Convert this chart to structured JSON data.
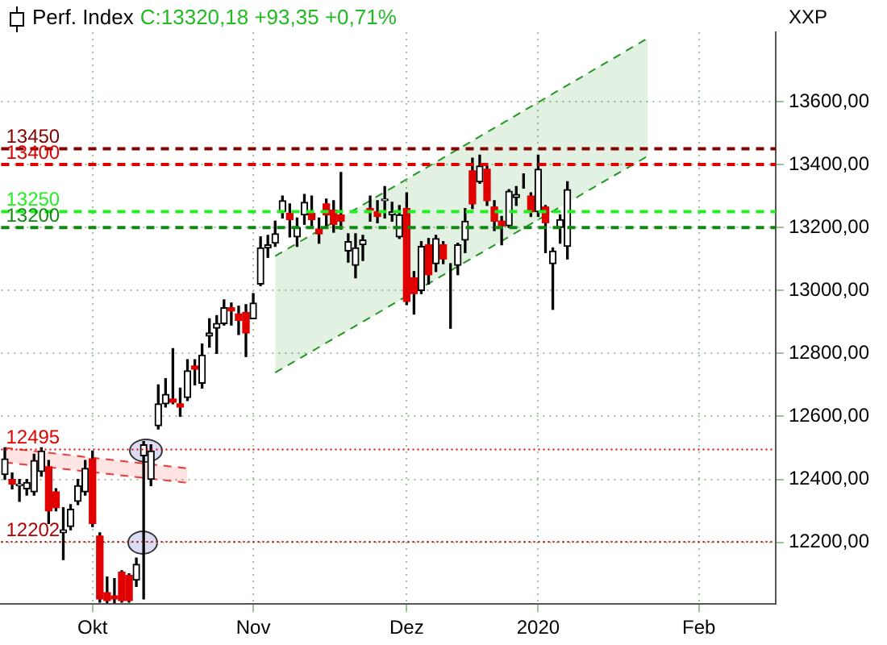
{
  "chart_data": {
    "type": "candlestick",
    "title": "Perf. Index",
    "subtitle": "C:13320,18 +93,35 +0,71%",
    "ylabel": "XXP",
    "categories": [
      null,
      null,
      null,
      null,
      null,
      null,
      null,
      null,
      null,
      null,
      null,
      null,
      "Okt",
      null,
      null,
      null,
      null,
      null,
      null,
      null,
      null,
      null,
      null,
      null,
      null,
      null,
      null,
      null,
      null,
      null,
      null,
      null,
      null,
      null,
      "Nov",
      null,
      null,
      null,
      null,
      null,
      null,
      null,
      null,
      null,
      null,
      null,
      null,
      null,
      null,
      null,
      null,
      null,
      null,
      null,
      null,
      "Dez",
      null,
      null,
      null,
      null,
      null,
      null,
      null,
      null,
      null,
      null,
      null,
      null,
      null,
      null,
      null,
      null,
      null,
      "2020",
      null,
      null,
      null,
      null,
      null,
      null,
      null,
      null,
      null,
      null,
      null,
      null,
      null,
      null,
      null,
      null,
      null,
      null,
      null,
      null,
      null,
      "Feb",
      null,
      null,
      null,
      null,
      null,
      null,
      null,
      null,
      null,
      null
    ],
    "ohlc": [
      [
        12415,
        12500,
        12400,
        12465
      ],
      [
        12400,
        12420,
        12370,
        12385
      ],
      [
        12380,
        12400,
        12330,
        12385
      ],
      [
        12370,
        12400,
        12350,
        12390
      ],
      [
        12360,
        12480,
        12350,
        12460
      ],
      [
        12425,
        12500,
        12410,
        12490
      ],
      [
        12440,
        12460,
        12260,
        12300
      ],
      [
        12360,
        12370,
        12300,
        12310
      ],
      [
        12230,
        12310,
        12145,
        12240
      ],
      [
        12250,
        12320,
        12240,
        12305
      ],
      [
        12330,
        12400,
        12320,
        12380
      ],
      [
        12360,
        12460,
        12350,
        12435
      ],
      [
        12465,
        12490,
        12250,
        12260
      ],
      [
        12220,
        12230,
        12010,
        12020
      ],
      [
        12040,
        12090,
        12008,
        12015
      ],
      [
        12030,
        12085,
        12008,
        12020
      ],
      [
        12105,
        12110,
        12010,
        12015
      ],
      [
        12095,
        12100,
        12010,
        12015
      ],
      [
        12080,
        12150,
        12060,
        12130
      ],
      [
        12475,
        12520,
        12020,
        12510
      ],
      [
        12400,
        12510,
        12380,
        12490
      ],
      [
        12570,
        12700,
        12560,
        12640
      ],
      [
        12640,
        12720,
        12630,
        12670
      ],
      [
        12655,
        12815,
        12640,
        12645
      ],
      [
        12640,
        12690,
        12600,
        12630
      ],
      [
        12660,
        12780,
        12650,
        12745
      ],
      [
        12760,
        12780,
        12700,
        12750
      ],
      [
        12705,
        12830,
        12690,
        12795
      ],
      [
        12855,
        12910,
        12820,
        12865
      ],
      [
        12880,
        12920,
        12800,
        12895
      ],
      [
        12895,
        12970,
        12890,
        12945
      ],
      [
        12945,
        12960,
        12890,
        12935
      ],
      [
        12925,
        12950,
        12860,
        12905
      ],
      [
        12930,
        12955,
        12790,
        12865
      ],
      [
        12910,
        12990,
        12910,
        12960
      ],
      [
        13020,
        13170,
        13015,
        13135
      ],
      [
        13135,
        13175,
        13105,
        13145
      ],
      [
        13150,
        13220,
        13140,
        13180
      ],
      [
        13250,
        13300,
        13230,
        13285
      ],
      [
        13245,
        13275,
        13170,
        13225
      ],
      [
        13170,
        13230,
        13140,
        13200
      ],
      [
        13240,
        13305,
        13210,
        13280
      ],
      [
        13245,
        13300,
        13205,
        13225
      ],
      [
        13195,
        13230,
        13150,
        13180
      ],
      [
        13275,
        13290,
        13200,
        13240
      ],
      [
        13255,
        13285,
        13185,
        13210
      ],
      [
        13240,
        13375,
        13195,
        13220
      ],
      [
        13125,
        13180,
        13090,
        13155
      ],
      [
        13080,
        13180,
        13040,
        13135
      ],
      [
        13145,
        13175,
        13095,
        13160
      ],
      [
        13260,
        13300,
        13220,
        13255
      ],
      [
        13250,
        13285,
        13215,
        13235
      ],
      [
        13285,
        13330,
        13230,
        13290
      ],
      [
        13240,
        13280,
        13220,
        13250
      ],
      [
        13170,
        13270,
        13165,
        13240
      ],
      [
        13260,
        13310,
        12955,
        12965
      ],
      [
        13040,
        13060,
        12925,
        12990
      ],
      [
        13000,
        13155,
        12990,
        13140
      ],
      [
        13145,
        13165,
        13020,
        13050
      ],
      [
        13085,
        13175,
        13060,
        13165
      ],
      [
        13145,
        13155,
        13085,
        13100
      ],
      [
        13070,
        13085,
        12880,
        13070
      ],
      [
        13080,
        13150,
        13050,
        13145
      ],
      [
        13160,
        13260,
        13120,
        13220
      ],
      [
        13380,
        13420,
        13260,
        13275
      ],
      [
        13345,
        13430,
        13340,
        13395
      ],
      [
        13385,
        13395,
        13270,
        13285
      ],
      [
        13265,
        13285,
        13190,
        13220
      ],
      [
        13220,
        13235,
        13145,
        13205
      ],
      [
        13205,
        13320,
        13200,
        13315
      ],
      [
        13295,
        13330,
        13270,
        13305
      ],
      [
        13335,
        13370,
        13325,
        13335
      ],
      [
        13300,
        13310,
        13235,
        13250
      ],
      [
        13250,
        13430,
        13235,
        13385
      ],
      [
        13265,
        13270,
        13120,
        13215
      ],
      [
        13085,
        13135,
        12940,
        13125
      ],
      [
        13200,
        13240,
        13150,
        13225
      ],
      [
        13140,
        13345,
        13100,
        13320
      ],
      null,
      null,
      null,
      null,
      null,
      null,
      null,
      null,
      null,
      null,
      null,
      null,
      null,
      null,
      null,
      null,
      null,
      null,
      null,
      null,
      null,
      null,
      null,
      null,
      null,
      null,
      null,
      null
    ],
    "series": [
      {
        "type": "line",
        "color": "#229922",
        "line_style": "dashed",
        "values": [
          null,
          null,
          null,
          null,
          null,
          null,
          null,
          null,
          null,
          null,
          null,
          null,
          null,
          null,
          null,
          null,
          null,
          null,
          null,
          null,
          null,
          null,
          null,
          null,
          null,
          null,
          null,
          null,
          null,
          null,
          null,
          null,
          null,
          null,
          null,
          null,
          null,
          13109,
          null,
          null,
          null,
          null,
          null,
          null,
          null,
          null,
          null,
          null,
          null,
          null,
          null,
          null,
          null,
          null,
          null,
          null,
          null,
          null,
          null,
          null,
          null,
          null,
          null,
          null,
          null,
          null,
          null,
          null,
          null,
          null,
          null,
          null,
          null,
          null,
          null,
          null,
          null,
          null,
          null,
          null,
          null,
          null,
          null,
          null,
          null,
          null,
          null,
          null,
          13801,
          null,
          null,
          null,
          null,
          null,
          null,
          null,
          null,
          null,
          null,
          null,
          null,
          null,
          null,
          null,
          null,
          null
        ],
        "upper": [
          null,
          null,
          null,
          null,
          null,
          null,
          null,
          null,
          null,
          null,
          null,
          null,
          null,
          null,
          null,
          null,
          null,
          null,
          null,
          null,
          null,
          null,
          null,
          null,
          null,
          null,
          null,
          null,
          null,
          null,
          null,
          null,
          null,
          null,
          null,
          null,
          null,
          13109,
          null,
          null,
          null,
          null,
          null,
          null,
          null,
          null,
          null,
          null,
          null,
          null,
          null,
          null,
          null,
          null,
          null,
          null,
          null,
          null,
          null,
          null,
          null,
          null,
          null,
          null,
          null,
          null,
          null,
          null,
          null,
          null,
          null,
          null,
          null,
          null,
          null,
          null,
          null,
          null,
          null,
          null,
          null,
          null,
          null,
          null,
          null,
          null,
          null,
          null,
          13801,
          null,
          null,
          null,
          null,
          null,
          null,
          null,
          null,
          null,
          null,
          null,
          null,
          null,
          null,
          null,
          null,
          null
        ],
        "lower": [
          null,
          null,
          null,
          null,
          null,
          null,
          null,
          null,
          null,
          null,
          null,
          null,
          null,
          null,
          null,
          null,
          null,
          null,
          null,
          null,
          null,
          null,
          null,
          null,
          null,
          null,
          null,
          null,
          null,
          null,
          null,
          null,
          null,
          null,
          null,
          null,
          null,
          12739,
          null,
          null,
          null,
          null,
          null,
          null,
          null,
          null,
          null,
          null,
          null,
          null,
          null,
          null,
          null,
          null,
          null,
          null,
          null,
          null,
          null,
          null,
          null,
          null,
          null,
          null,
          null,
          null,
          null,
          null,
          null,
          null,
          null,
          null,
          null,
          null,
          null,
          null,
          null,
          null,
          null,
          null,
          null,
          null,
          null,
          null,
          null,
          null,
          null,
          null,
          13427,
          null,
          null,
          null,
          null,
          null,
          null,
          null,
          null,
          null,
          null,
          null,
          null,
          null,
          null,
          null,
          null,
          null
        ]
      },
      {
        "type": "line",
        "color": "#229922",
        "line_style": "dashed",
        "values": [
          null,
          null,
          null,
          null,
          null,
          null,
          null,
          null,
          null,
          null,
          null,
          null,
          null,
          null,
          null,
          null,
          null,
          null,
          null,
          null,
          null,
          null,
          null,
          null,
          null,
          null,
          null,
          null,
          null,
          null,
          null,
          null,
          null,
          null,
          null,
          null,
          null,
          12739,
          null,
          null,
          null,
          null,
          null,
          null,
          null,
          null,
          null,
          null,
          null,
          null,
          null,
          null,
          null,
          null,
          null,
          null,
          null,
          null,
          null,
          null,
          null,
          null,
          null,
          null,
          null,
          null,
          null,
          null,
          null,
          null,
          null,
          null,
          null,
          null,
          null,
          null,
          null,
          null,
          null,
          null,
          null,
          null,
          null,
          null,
          null,
          null,
          null,
          null,
          13427,
          null,
          null,
          null,
          null,
          null,
          null,
          null,
          null,
          null,
          null,
          null,
          null,
          null,
          null,
          null,
          null,
          null
        ]
      },
      {
        "type": "line",
        "color": "#ff3333",
        "line_style": "dashed",
        "values": [
          12454,
          null,
          null,
          null,
          null,
          null,
          null,
          null,
          null,
          null,
          null,
          null,
          null,
          null,
          null,
          null,
          null,
          null,
          null,
          null,
          null,
          null,
          null,
          null,
          null,
          12389,
          null,
          null,
          null,
          null,
          null,
          null,
          null,
          null,
          null,
          null,
          null,
          null,
          null,
          null,
          null,
          null,
          null,
          null,
          null,
          null,
          null,
          null,
          null,
          null,
          null,
          null,
          null,
          null,
          null,
          null,
          null,
          null,
          null,
          null,
          null,
          null,
          null,
          null,
          null,
          null,
          null,
          null,
          null,
          null,
          null,
          null,
          null,
          null,
          null,
          null,
          null,
          null,
          null,
          null,
          null,
          null,
          null,
          null,
          null,
          null,
          null,
          null,
          null,
          null,
          null,
          null,
          null,
          null,
          null,
          null,
          null,
          null,
          null,
          null,
          null,
          null,
          null,
          null,
          null,
          null
        ]
      },
      {
        "type": "line",
        "color": "#ff3333",
        "line_style": "dashed",
        "values": [
          12500,
          null,
          null,
          null,
          null,
          null,
          null,
          null,
          null,
          null,
          null,
          null,
          null,
          null,
          null,
          null,
          null,
          null,
          null,
          null,
          null,
          null,
          null,
          null,
          null,
          12435,
          null,
          null,
          null,
          null,
          null,
          null,
          null,
          null,
          null,
          null,
          null,
          null,
          null,
          null,
          null,
          null,
          null,
          null,
          null,
          null,
          null,
          null,
          null,
          null,
          null,
          null,
          null,
          null,
          null,
          null,
          null,
          null,
          null,
          null,
          null,
          null,
          null,
          null,
          null,
          null,
          null,
          null,
          null,
          null,
          null,
          null,
          null,
          null,
          null,
          null,
          null,
          null,
          null,
          null,
          null,
          null,
          null,
          null,
          null,
          null,
          null,
          null,
          null,
          null,
          null,
          null,
          null,
          null,
          null,
          null,
          null,
          null,
          null,
          null,
          null,
          null,
          null,
          null,
          null,
          null
        ],
        "upper": [
          12500,
          null,
          null,
          null,
          null,
          null,
          null,
          null,
          null,
          null,
          null,
          null,
          null,
          null,
          null,
          null,
          null,
          null,
          null,
          null,
          null,
          null,
          null,
          null,
          null,
          12435,
          null,
          null,
          null,
          null,
          null,
          null,
          null,
          null,
          null,
          null,
          null,
          null,
          null,
          null,
          null,
          null,
          null,
          null,
          null,
          null,
          null,
          null,
          null,
          null,
          null,
          null,
          null,
          null,
          null,
          null,
          null,
          null,
          null,
          null,
          null,
          null,
          null,
          null,
          null,
          null,
          null,
          null,
          null,
          null,
          null,
          null,
          null,
          null,
          null,
          null,
          null,
          null,
          null,
          null,
          null,
          null,
          null,
          null,
          null,
          null,
          null,
          null,
          null,
          null,
          null,
          null,
          null,
          null,
          null,
          null,
          null,
          null,
          null,
          null,
          null,
          null,
          null,
          null,
          null,
          null
        ],
        "lower": [
          12454,
          null,
          null,
          null,
          null,
          null,
          null,
          null,
          null,
          null,
          null,
          null,
          null,
          null,
          null,
          null,
          null,
          null,
          null,
          null,
          null,
          null,
          null,
          null,
          null,
          12389,
          null,
          null,
          null,
          null,
          null,
          null,
          null,
          null,
          null,
          null,
          null,
          null,
          null,
          null,
          null,
          null,
          null,
          null,
          null,
          null,
          null,
          null,
          null,
          null,
          null,
          null,
          null,
          null,
          null,
          null,
          null,
          null,
          null,
          null,
          null,
          null,
          null,
          null,
          null,
          null,
          null,
          null,
          null,
          null,
          null,
          null,
          null,
          null,
          null,
          null,
          null,
          null,
          null,
          null,
          null,
          null,
          null,
          null,
          null,
          null,
          null,
          null,
          null,
          null,
          null,
          null,
          null,
          null,
          null,
          null,
          null,
          null,
          null,
          null,
          null,
          null,
          null,
          null,
          null,
          null
        ]
      }
    ],
    "ref_lines": [
      {
        "axis": "y",
        "value": 13450,
        "label": "13450",
        "color": "#800000",
        "line_style": "dashed"
      },
      {
        "axis": "y",
        "value": 13400,
        "label": "13400",
        "color": "#e00000",
        "line_style": "dashed"
      },
      {
        "axis": "y",
        "value": 13250,
        "label": "13250",
        "color": "#22ee22",
        "line_style": "dashed"
      },
      {
        "axis": "y",
        "value": 13200,
        "label": "13200",
        "color": "#118811",
        "line_style": "dashed"
      },
      {
        "axis": "y",
        "value": 12495,
        "label": "12495",
        "color": "#e00000",
        "line_style": "dotted"
      },
      {
        "axis": "y",
        "value": 12202,
        "label": "12202",
        "color": "#b00000",
        "line_style": "dotted"
      }
    ],
    "ylim": [
      12004,
      13820
    ],
    "yticks": [
      {
        "value": 12200,
        "label": "12200,00"
      },
      {
        "value": 12400,
        "label": "12400,00"
      },
      {
        "value": 12600,
        "label": "12600,00"
      },
      {
        "value": 12800,
        "label": "12800,00"
      },
      {
        "value": 13000,
        "label": "13000,00"
      },
      {
        "value": 13200,
        "label": "13200,00"
      },
      {
        "value": 13400,
        "label": "13400,00"
      },
      {
        "value": 13600,
        "label": "13600,00"
      }
    ],
    "grid": true,
    "legend": false
  }
}
